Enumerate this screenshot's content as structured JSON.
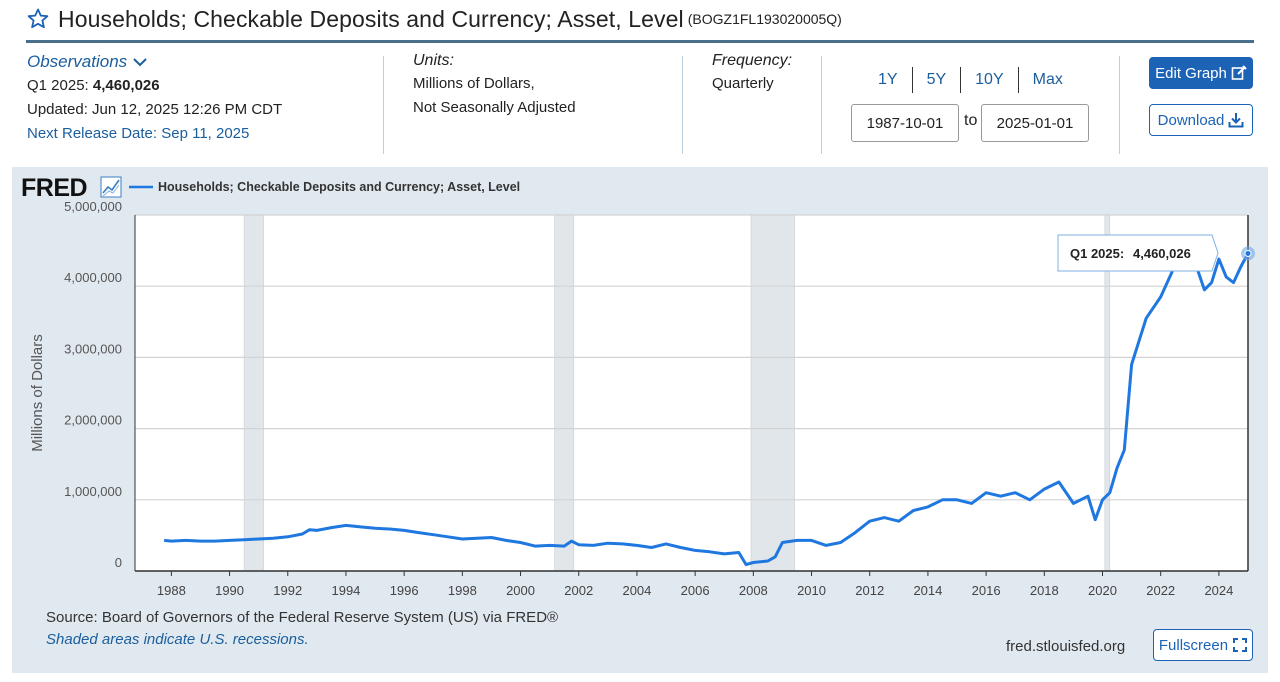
{
  "header": {
    "title": "Households; Checkable Deposits and Currency; Asset, Level",
    "series_id": "(BOGZ1FL193020005Q)"
  },
  "observations": {
    "label": "Observations",
    "latest_period": "Q1 2025:",
    "latest_value": "4,460,026",
    "updated": "Updated: Jun 12, 2025 12:26 PM CDT",
    "next_release": "Next Release Date: Sep 11, 2025"
  },
  "units": {
    "label": "Units:",
    "line1": "Millions of Dollars,",
    "line2": "Not Seasonally Adjusted"
  },
  "frequency": {
    "label": "Frequency:",
    "value": "Quarterly"
  },
  "range": {
    "buttons": [
      "1Y",
      "5Y",
      "10Y",
      "Max"
    ],
    "start": "1987-10-01",
    "to_label": "to",
    "end": "2025-01-01"
  },
  "actions": {
    "edit_graph": "Edit Graph",
    "download": "Download",
    "fullscreen": "Fullscreen"
  },
  "footer": {
    "source": "Source: Board of Governors of the Federal Reserve System (US) via FRED®",
    "shaded_note": "Shaded areas indicate U.S. recessions.",
    "site": "fred.stlouisfed.org"
  },
  "colors": {
    "accent": "#1c63b5",
    "series_line": "#1f77e0",
    "recession_shade": "#e1e6ea",
    "panel_bg": "#e1e9f0"
  },
  "chart_data": {
    "type": "line",
    "logo": "FRED",
    "legend_label": "Households; Checkable Deposits and Currency; Asset, Level",
    "ylabel": "Millions of Dollars",
    "ylim": [
      0,
      5000000
    ],
    "xlim": [
      1987.75,
      2025.0
    ],
    "y_ticks": [
      0,
      1000000,
      2000000,
      3000000,
      4000000,
      5000000
    ],
    "y_tick_labels": [
      "0",
      "1,000,000",
      "2,000,000",
      "3,000,000",
      "4,000,000",
      "5,000,000"
    ],
    "x_ticks": [
      1988,
      1990,
      1992,
      1994,
      1996,
      1998,
      2000,
      2002,
      2004,
      2006,
      2008,
      2010,
      2012,
      2014,
      2016,
      2018,
      2020,
      2022,
      2024
    ],
    "x_tick_labels": [
      "1988",
      "1990",
      "1992",
      "1994",
      "1996",
      "1998",
      "2000",
      "2002",
      "2004",
      "2006",
      "2008",
      "2010",
      "2012",
      "2014",
      "2016",
      "2018",
      "2020",
      "2022",
      "2024"
    ],
    "recessions": [
      [
        1990.5,
        1991.17
      ],
      [
        2001.17,
        2001.83
      ],
      [
        2007.92,
        2009.42
      ],
      [
        2020.08,
        2020.25
      ]
    ],
    "tooltip": {
      "period": "Q1 2025:",
      "value": "4,460,026"
    },
    "series": [
      {
        "name": "Households; Checkable Deposits and Currency; Asset, Level",
        "x": [
          1987.75,
          1988.0,
          1988.5,
          1989.0,
          1989.5,
          1990.0,
          1990.5,
          1991.0,
          1991.5,
          1992.0,
          1992.5,
          1992.75,
          1993.0,
          1993.5,
          1994.0,
          1994.5,
          1995.0,
          1995.5,
          1996.0,
          1996.5,
          1997.0,
          1997.5,
          1998.0,
          1998.5,
          1999.0,
          1999.5,
          2000.0,
          2000.5,
          2001.0,
          2001.5,
          2001.75,
          2002.0,
          2002.5,
          2003.0,
          2003.5,
          2004.0,
          2004.5,
          2005.0,
          2005.5,
          2006.0,
          2006.5,
          2007.0,
          2007.5,
          2007.75,
          2008.0,
          2008.5,
          2008.75,
          2009.0,
          2009.5,
          2010.0,
          2010.5,
          2011.0,
          2011.5,
          2012.0,
          2012.5,
          2013.0,
          2013.5,
          2014.0,
          2014.5,
          2015.0,
          2015.5,
          2016.0,
          2016.5,
          2017.0,
          2017.5,
          2018.0,
          2018.5,
          2019.0,
          2019.5,
          2019.75,
          2020.0,
          2020.25,
          2020.5,
          2020.75,
          2021.0,
          2021.5,
          2022.0,
          2022.5,
          2023.0,
          2023.25,
          2023.5,
          2023.75,
          2024.0,
          2024.25,
          2024.5,
          2024.75,
          2025.0
        ],
        "values": [
          430000,
          420000,
          430000,
          420000,
          420000,
          430000,
          440000,
          450000,
          460000,
          480000,
          520000,
          580000,
          570000,
          610000,
          640000,
          620000,
          600000,
          590000,
          570000,
          540000,
          510000,
          480000,
          450000,
          460000,
          470000,
          430000,
          400000,
          350000,
          360000,
          350000,
          420000,
          370000,
          360000,
          390000,
          380000,
          360000,
          330000,
          380000,
          330000,
          290000,
          270000,
          240000,
          260000,
          90000,
          120000,
          140000,
          200000,
          400000,
          430000,
          430000,
          360000,
          400000,
          540000,
          700000,
          750000,
          700000,
          850000,
          900000,
          1000000,
          1000000,
          950000,
          1100000,
          1050000,
          1100000,
          1000000,
          1150000,
          1250000,
          950000,
          1050000,
          720000,
          1000000,
          1100000,
          1450000,
          1700000,
          2900000,
          3550000,
          3850000,
          4300000,
          4350000,
          4250000,
          3950000,
          4050000,
          4380000,
          4130000,
          4050000,
          4270000,
          4460026
        ]
      }
    ]
  }
}
